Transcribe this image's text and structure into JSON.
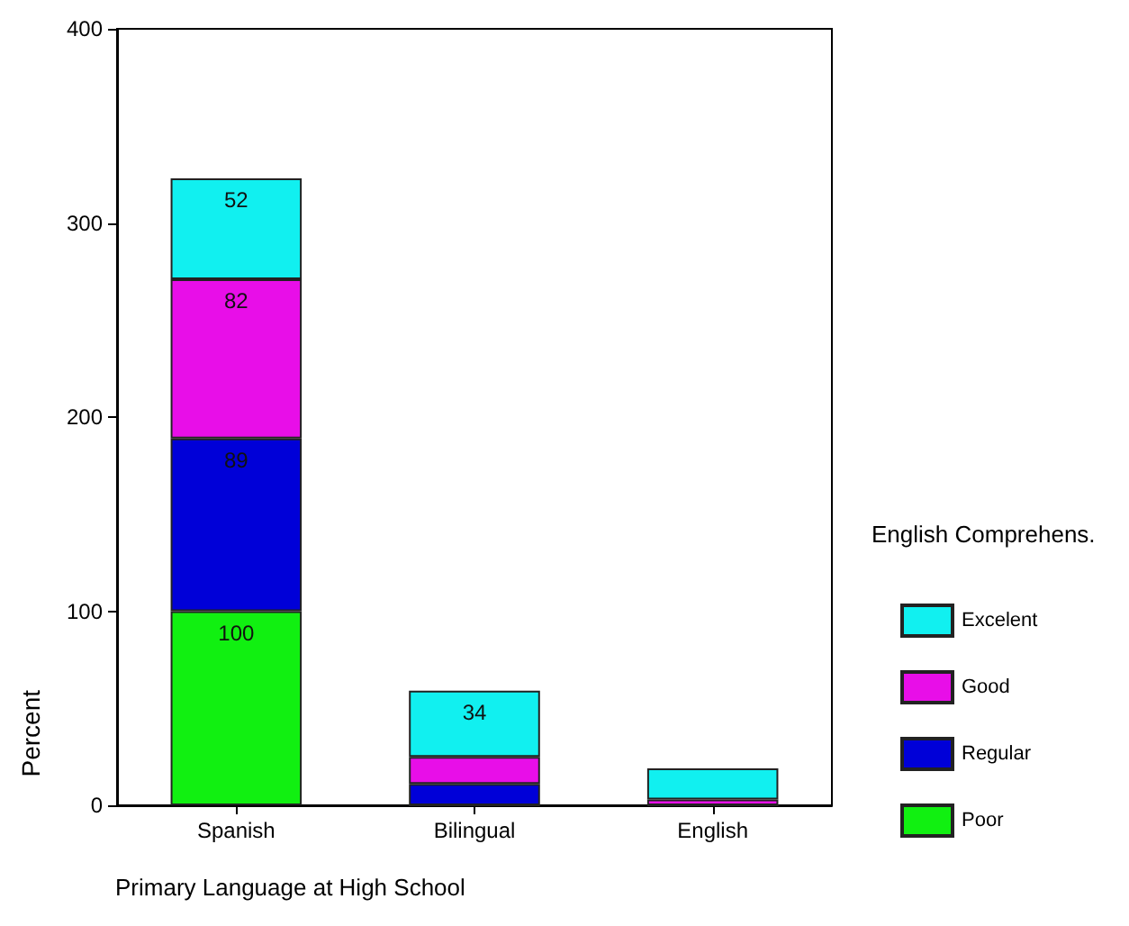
{
  "chart_data": {
    "type": "bar",
    "stacked": true,
    "categories": [
      "Spanish",
      "Bilingual",
      "English"
    ],
    "series": [
      {
        "name": "Poor",
        "color": "#11f011",
        "values": [
          100,
          0,
          0
        ],
        "value_labels": [
          "100",
          null,
          null
        ]
      },
      {
        "name": "Regular",
        "color": "#0000d8",
        "values": [
          89,
          11,
          0
        ],
        "value_labels": [
          "89",
          null,
          null
        ]
      },
      {
        "name": "Good",
        "color": "#e80ee8",
        "values": [
          82,
          14,
          3
        ],
        "value_labels": [
          "82",
          null,
          null
        ]
      },
      {
        "name": "Excelent",
        "color": "#11f0f0",
        "values": [
          52,
          34,
          16
        ],
        "value_labels": [
          "52",
          "34",
          null
        ]
      }
    ],
    "xlabel": "Primary Language at High School",
    "ylabel": "Percent",
    "legend_title": "English Comprehens.",
    "legend": "right",
    "ylim": [
      0,
      400
    ],
    "yticks": [
      0,
      100,
      200,
      300,
      400
    ],
    "grid": false
  }
}
